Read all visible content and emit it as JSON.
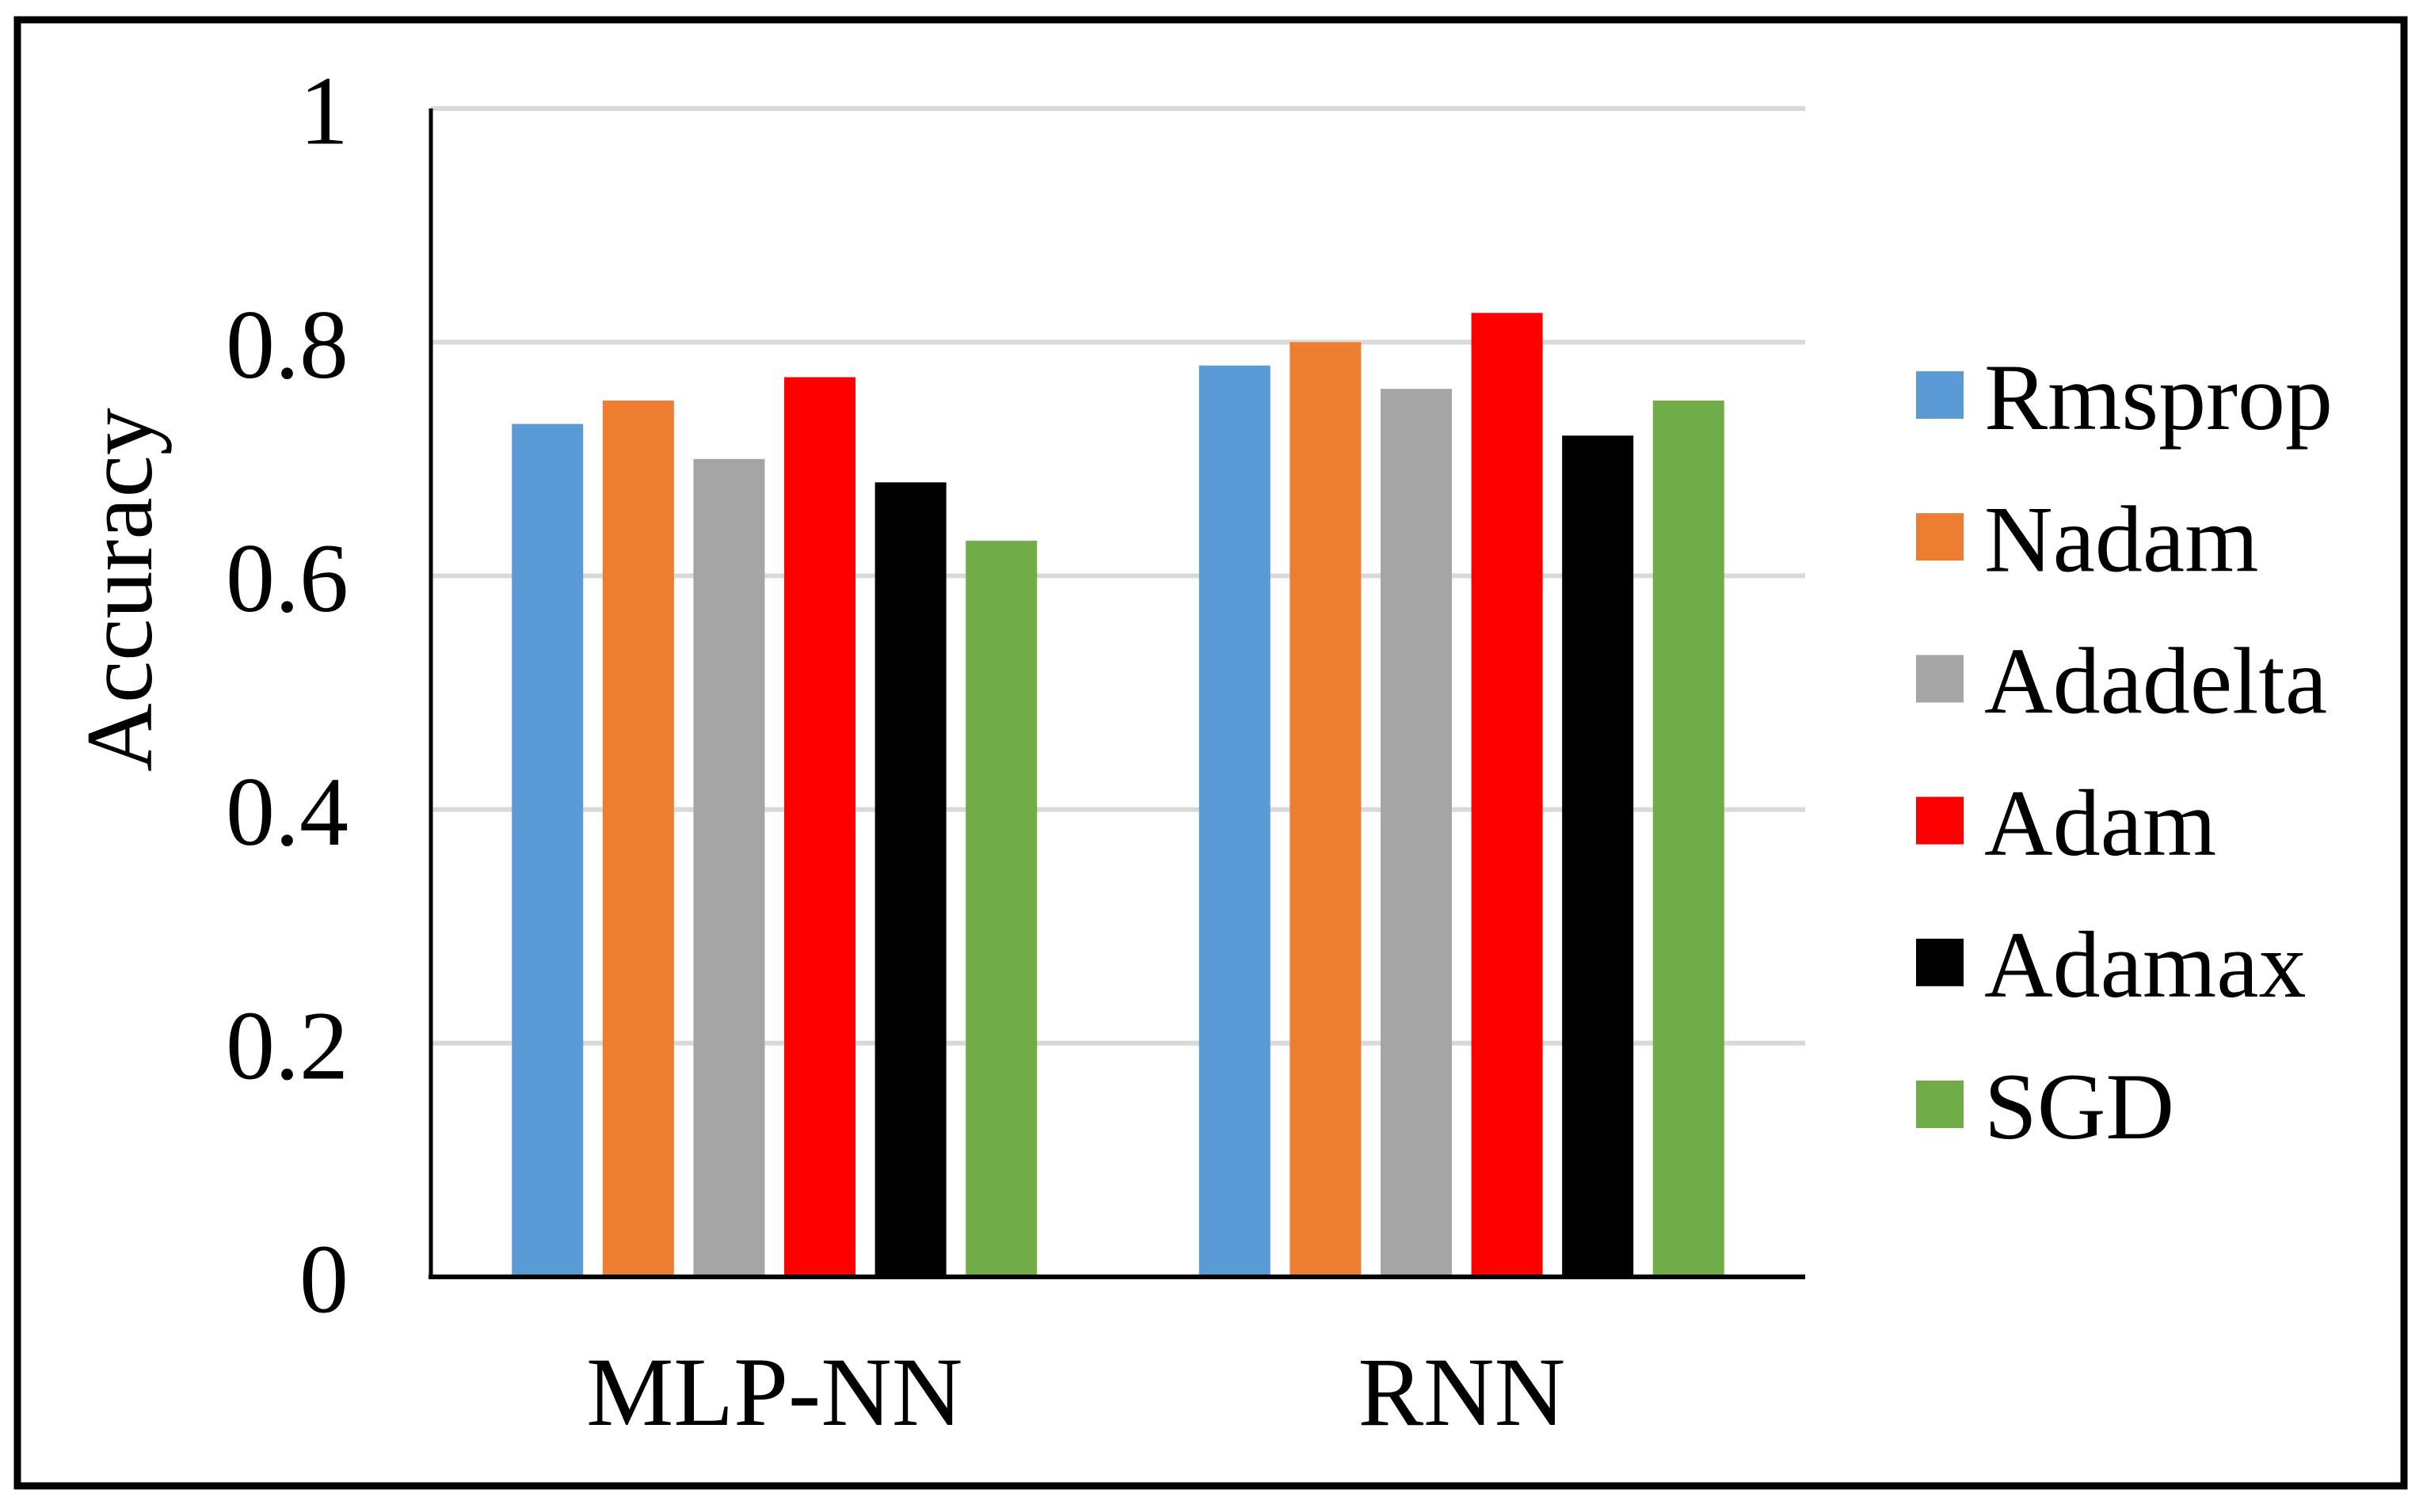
{
  "chart_data": {
    "type": "bar",
    "title": "",
    "categories": [
      "MLP-NN",
      "RNN"
    ],
    "series": [
      {
        "name": "Rmsprop",
        "color": "#5B9BD5",
        "values": [
          0.73,
          0.78
        ]
      },
      {
        "name": "Nadam",
        "color": "#ED7D31",
        "values": [
          0.75,
          0.8
        ]
      },
      {
        "name": "Adadelta",
        "color": "#A5A5A5",
        "values": [
          0.7,
          0.76
        ]
      },
      {
        "name": "Adam",
        "color": "#FF0000",
        "values": [
          0.77,
          0.825
        ]
      },
      {
        "name": "Adamax",
        "color": "#000000",
        "values": [
          0.68,
          0.72
        ]
      },
      {
        "name": "SGD",
        "color": "#70AD47",
        "values": [
          0.63,
          0.75
        ]
      }
    ],
    "xlabel": "",
    "ylabel": "Accuracy",
    "ylim": [
      0,
      1
    ],
    "yticks": [
      0,
      0.2,
      0.4,
      0.6,
      0.8,
      1
    ],
    "ytick_labels": [
      "0",
      "0.2",
      "0.4",
      "0.6",
      "0.8",
      "1"
    ],
    "grid": true,
    "legend_position": "right",
    "legend_entries": [
      "Rmsprop",
      "Nadam",
      "Adadelta",
      "Adam",
      "Adamax",
      "SGD"
    ],
    "colors": {
      "gridline": "#D9D9D9",
      "axis": "#000000",
      "text": "#000000",
      "background": "#FFFFFF",
      "frame_border": "#000000"
    }
  }
}
